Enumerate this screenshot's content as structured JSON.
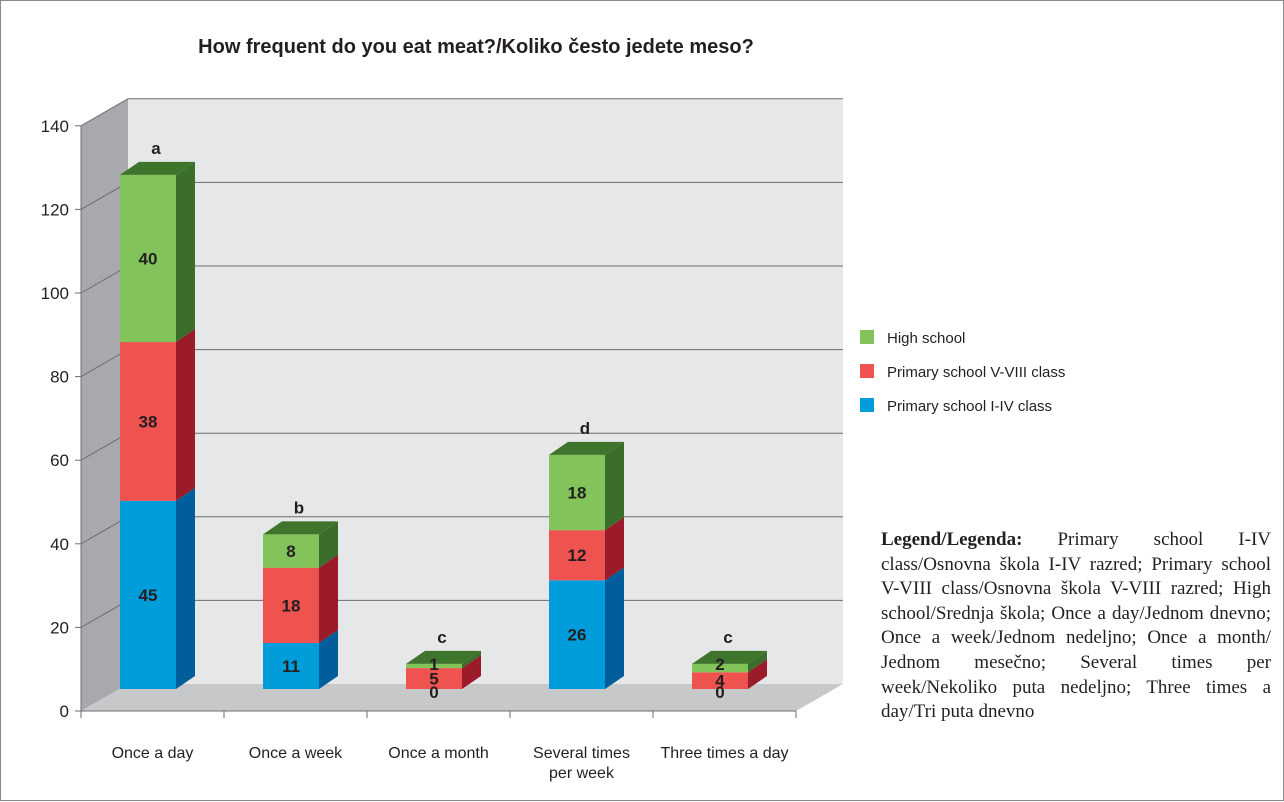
{
  "chart_data": {
    "type": "bar",
    "stacked": true,
    "three_d": true,
    "title": "How frequent do you eat meat?/Koliko često jedete meso?",
    "categories": [
      "Once a day",
      "Once a week",
      "Once a month",
      "Several times per week",
      "Three times a day"
    ],
    "category_lines": [
      [
        "Once a day"
      ],
      [
        "Once a week"
      ],
      [
        "Once a month"
      ],
      [
        "Several times",
        "per week"
      ],
      [
        "Three times a day"
      ]
    ],
    "series": [
      {
        "name": "Primary school I-IV class",
        "values": [
          45,
          11,
          0,
          26,
          0
        ],
        "color": "#009ddb",
        "side": "#005f9a"
      },
      {
        "name": "Primary school V-VIII class",
        "values": [
          38,
          18,
          5,
          12,
          4
        ],
        "color": "#ef5350",
        "side": "#9b1b2a"
      },
      {
        "name": "High school",
        "values": [
          40,
          8,
          1,
          18,
          2
        ],
        "color": "#82c45a",
        "side": "#3b6e2a"
      }
    ],
    "group_letters": [
      "a",
      "b",
      "c",
      "d",
      "c"
    ],
    "y_ticks": [
      "0",
      "20",
      "40",
      "60",
      "80",
      "100",
      "120",
      "140"
    ],
    "ylim": [
      0,
      140
    ],
    "grid": true,
    "legend_position": "right"
  },
  "note": {
    "label": "Legend/Legenda:",
    "text": " Primary school I-IV class/Osnovna škola I-IV razred; Primary school V-VIII class/Osnovna škola V-VIII razred; High school/Srednja škola; Once a day/Jednom dnevno; Once a week/Jednom nedeljno; Once a month/ Jednom mesečno; Several times per week/Nekoliko puta nedeljno; Three times a day/Tri puta dnevno"
  }
}
